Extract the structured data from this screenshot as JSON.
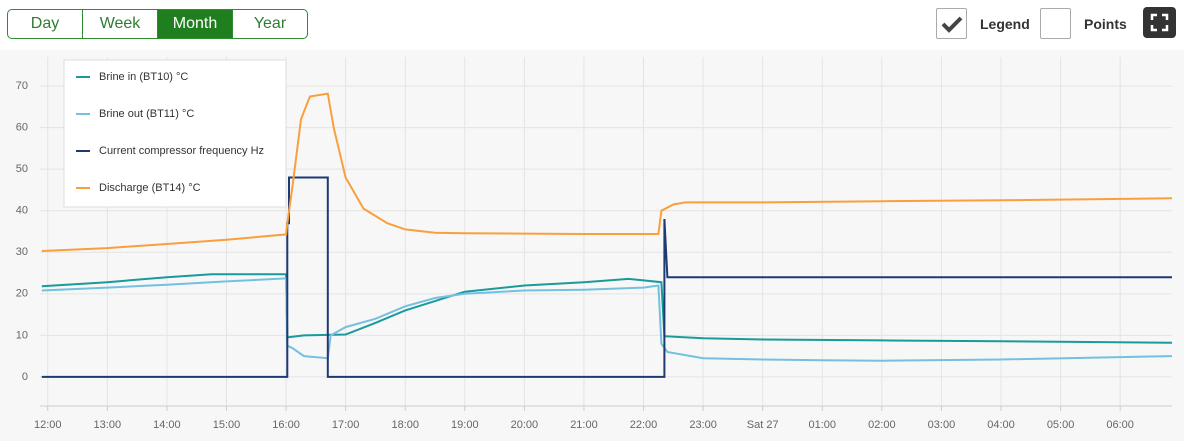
{
  "toolbar": {
    "ranges": [
      "Day",
      "Week",
      "Month",
      "Year"
    ],
    "active_range": 2,
    "toggles": [
      {
        "label": "Legend",
        "checked": true
      },
      {
        "label": "Points",
        "checked": false
      }
    ]
  },
  "chart_data": {
    "type": "line",
    "grid": true,
    "legend": "top-left",
    "xlim": [
      11.87,
      30.87
    ],
    "ylim": [
      -7,
      77
    ],
    "xticks": [
      {
        "value": 12,
        "label": "12:00"
      },
      {
        "value": 13,
        "label": "13:00"
      },
      {
        "value": 14,
        "label": "14:00"
      },
      {
        "value": 15,
        "label": "15:00"
      },
      {
        "value": 16,
        "label": "16:00"
      },
      {
        "value": 17,
        "label": "17:00"
      },
      {
        "value": 18,
        "label": "18:00"
      },
      {
        "value": 19,
        "label": "19:00"
      },
      {
        "value": 20,
        "label": "20:00"
      },
      {
        "value": 21,
        "label": "21:00"
      },
      {
        "value": 22,
        "label": "22:00"
      },
      {
        "value": 23,
        "label": "23:00"
      },
      {
        "value": 24,
        "label": "Sat 27"
      },
      {
        "value": 25,
        "label": "01:00"
      },
      {
        "value": 26,
        "label": "02:00"
      },
      {
        "value": 27,
        "label": "03:00"
      },
      {
        "value": 28,
        "label": "04:00"
      },
      {
        "value": 29,
        "label": "05:00"
      },
      {
        "value": 30,
        "label": "06:00"
      }
    ],
    "yticks": [
      0,
      10,
      20,
      30,
      40,
      50,
      60,
      70
    ],
    "series": [
      {
        "name": "Brine in (BT10) °C",
        "color": "#1a9a9a",
        "x": [
          11.9,
          13,
          14,
          14.75,
          16,
          16.02,
          16.3,
          17,
          17.5,
          18,
          19,
          20,
          21,
          21.75,
          22.3,
          22.35,
          23,
          24,
          26,
          28,
          30.87
        ],
        "values": [
          21.8,
          22.8,
          24,
          24.7,
          24.7,
          9.5,
          10,
          10.2,
          13,
          16,
          20.5,
          22,
          22.8,
          23.6,
          22.8,
          9.8,
          9.3,
          9,
          8.8,
          8.6,
          8.2
        ]
      },
      {
        "name": "Brine out (BT11) °C",
        "color": "#74c0e0",
        "x": [
          11.9,
          13,
          14,
          15,
          16,
          16.02,
          16.1,
          16.3,
          16.7,
          16.75,
          17,
          17.5,
          18,
          18.5,
          19,
          20,
          21,
          22,
          22.25,
          22.3,
          22.4,
          23,
          24,
          25,
          26,
          28,
          30.87
        ],
        "values": [
          20.8,
          21.5,
          22.2,
          23,
          23.7,
          7.5,
          7,
          5,
          4.5,
          10,
          12,
          14,
          17,
          19,
          20,
          20.8,
          21,
          21.5,
          22,
          8,
          6,
          4.5,
          4.2,
          4,
          3.9,
          4.2,
          5
        ]
      },
      {
        "name": "Current compressor frequency Hz",
        "color": "#1f3a73",
        "x": [
          11.9,
          16.02,
          16.02,
          16.05,
          16.05,
          16.7,
          16.7,
          22.35,
          22.35,
          22.4,
          30.87
        ],
        "values": [
          0,
          0,
          37,
          37,
          48,
          48,
          0,
          0,
          38,
          24,
          24
        ]
      },
      {
        "name": "Discharge (BT14) °C",
        "color": "#f7a03c",
        "x": [
          11.9,
          13,
          14,
          15,
          16,
          16.02,
          16.1,
          16.25,
          16.4,
          16.7,
          16.8,
          17,
          17.3,
          17.7,
          18,
          18.5,
          19,
          20,
          21,
          22.25,
          22.3,
          22.5,
          22.7,
          24,
          26,
          28,
          30.87
        ],
        "values": [
          30.3,
          31,
          32,
          33,
          34.3,
          37,
          45,
          62,
          67.5,
          68.2,
          60,
          48,
          40.5,
          37,
          35.5,
          34.7,
          34.6,
          34.5,
          34.4,
          34.4,
          40,
          41.5,
          42,
          42,
          42.3,
          42.5,
          43
        ]
      }
    ]
  }
}
